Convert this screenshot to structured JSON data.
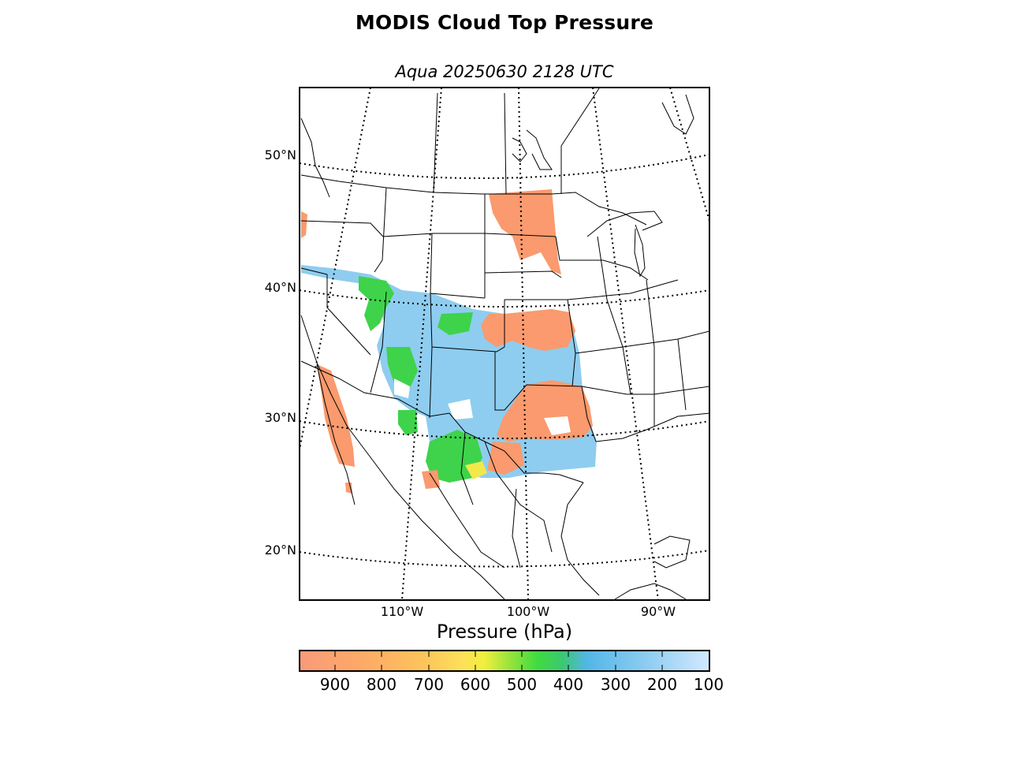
{
  "title": "MODIS Cloud Top Pressure",
  "subtitle": "Aqua 20250630 2128 UTC",
  "map": {
    "projection": "lambert-conformal",
    "extent": "western and central North America",
    "lat_labels": [
      "50°N",
      "40°N",
      "30°N",
      "20°N"
    ],
    "lon_labels": [
      "110°W",
      "100°W",
      "90°W"
    ],
    "graticule_style": "dotted",
    "boundaries": [
      "coastlines",
      "countries",
      "states"
    ]
  },
  "colorbar": {
    "label": "Pressure (hPa)",
    "ticks": [
      "900",
      "800",
      "700",
      "600",
      "500",
      "400",
      "300",
      "200",
      "100"
    ],
    "range": [
      975,
      100
    ],
    "colors": [
      "#fa9a7a",
      "#fdb060",
      "#fde05a",
      "#f2ef40",
      "#3fdc40",
      "#3cc870",
      "#52b6e6",
      "#85c9f0",
      "#cfe7fe"
    ]
  },
  "chart_data": {
    "type": "heatmap",
    "variable": "Cloud Top Pressure",
    "units": "hPa",
    "colors": {
      "low_cloud": "#fa9a6e",
      "mid_cloud": "#3ed34b",
      "high_cloud": "#8ecdef"
    },
    "regions": [
      {
        "area": "North Dakota / eastern Montana",
        "class": "low_cloud"
      },
      {
        "area": "Nebraska / Kansas / Missouri border",
        "class": "low_cloud"
      },
      {
        "area": "Oklahoma / north Texas",
        "class": "low_cloud"
      },
      {
        "area": "Baja California",
        "class": "low_cloud"
      },
      {
        "area": "Utah / Colorado / New Mexico",
        "class": "mid_cloud"
      },
      {
        "area": "West Texas / Chihuahua",
        "class": "mid_cloud"
      },
      {
        "area": "Colorado / Kansas / Oklahoma / Texas",
        "class": "high_cloud"
      }
    ]
  }
}
